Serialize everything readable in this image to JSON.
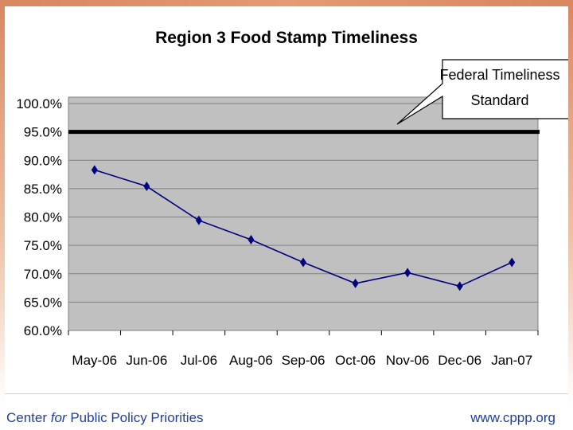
{
  "chart_data": {
    "type": "line",
    "title": "Region 3 Food Stamp Timeliness",
    "xlabel": "",
    "ylabel": "",
    "categories": [
      "May-06",
      "Jun-06",
      "Jul-06",
      "Aug-06",
      "Sep-06",
      "Oct-06",
      "Nov-06",
      "Dec-06",
      "Jan-07"
    ],
    "series": [
      {
        "values": [
          88.3,
          85.4,
          79.4,
          76.0,
          72.0,
          68.3,
          70.2,
          67.8,
          72.0
        ],
        "color": "#000080",
        "marker": "diamond"
      }
    ],
    "reference_line": {
      "value": 95.0,
      "color": "#000000"
    },
    "y_tick_labels": [
      "100.0%",
      "95.0%",
      "90.0%",
      "85.0%",
      "80.0%",
      "75.0%",
      "70.0%",
      "65.0%",
      "60.0%"
    ],
    "ylim": [
      60,
      100
    ],
    "ystep": 5,
    "grid": true,
    "plot_background": "#c0c0c0",
    "annotation": {
      "lines": [
        "Federal Timeliness",
        "Standard"
      ]
    }
  },
  "footer": {
    "organization_before": "Center ",
    "organization_italic": "for",
    "organization_after": " Public Policy Priorities",
    "website": "www.cppp.org"
  },
  "colors": {
    "slide_border": "#d9875f",
    "footer_text": "#1f3fa0"
  }
}
